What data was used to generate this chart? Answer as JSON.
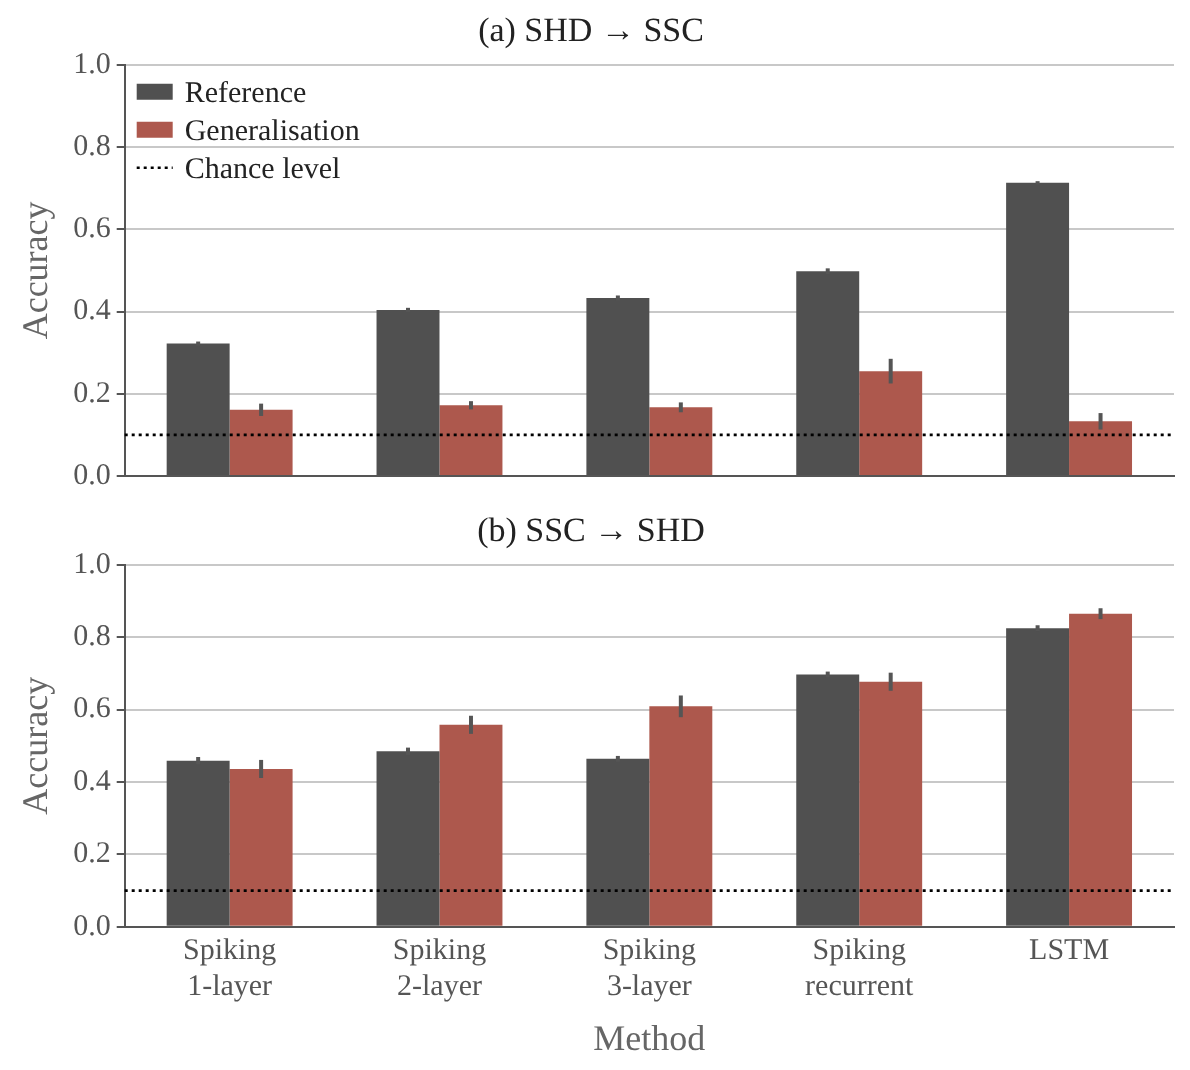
{
  "chart_data": [
    {
      "type": "bar",
      "title": "(a) SHD → SSC",
      "ylabel": "Accuracy",
      "categories": [
        null,
        null,
        null,
        null,
        null
      ],
      "series": [
        {
          "name": "Reference",
          "color": "#505050",
          "values": [
            0.322,
            0.404,
            0.433,
            0.498,
            0.713
          ],
          "errors": [
            0.005,
            0.005,
            0.006,
            0.007,
            0.004
          ]
        },
        {
          "name": "Generalisation",
          "color": "#ad584d",
          "values": [
            0.161,
            0.172,
            0.167,
            0.255,
            0.133
          ],
          "errors": [
            0.015,
            0.01,
            0.012,
            0.03,
            0.02
          ]
        }
      ],
      "ylim": [
        0,
        1
      ],
      "yticks": [
        {
          "value": 0,
          "label": "0.0"
        },
        {
          "value": 0.2,
          "label": "0.2"
        },
        {
          "value": 0.4,
          "label": "0.4"
        },
        {
          "value": 0.6,
          "label": "0.6"
        },
        {
          "value": 0.8,
          "label": "0.8"
        },
        {
          "value": 1,
          "label": "1.0"
        }
      ],
      "ref_lines": [
        {
          "axis": "y",
          "value": 0.1,
          "label": "Chance level",
          "color": "#000000",
          "line_style": "dotted"
        }
      ],
      "grid": "y",
      "legend": "top left",
      "tick_labels": "y"
    },
    {
      "type": "bar",
      "title": "(b) SSC → SHD",
      "xlabel": "Method",
      "ylabel": "Accuracy",
      "categories": [
        "Spiking 1-layer",
        "Spiking 2-layer",
        "Spiking 3-layer",
        "Spiking recurrent",
        "LSTM"
      ],
      "series": [
        {
          "color": "#505050",
          "values": [
            0.459,
            0.485,
            0.464,
            0.697,
            0.825
          ],
          "errors": [
            0.01,
            0.01,
            0.008,
            0.008,
            0.008
          ]
        },
        {
          "color": "#ad584d",
          "values": [
            0.436,
            0.558,
            0.609,
            0.677,
            0.865
          ],
          "errors": [
            0.025,
            0.025,
            0.03,
            0.025,
            0.015
          ]
        }
      ],
      "ylim": [
        0,
        1
      ],
      "yticks": [
        {
          "value": 0,
          "label": "0.0"
        },
        {
          "value": 0.2,
          "label": "0.2"
        },
        {
          "value": 0.4,
          "label": "0.4"
        },
        {
          "value": 0.6,
          "label": "0.6"
        },
        {
          "value": 0.8,
          "label": "0.8"
        },
        {
          "value": 1,
          "label": "1.0"
        }
      ],
      "ref_lines": [
        {
          "axis": "y",
          "value": 0.1,
          "color": "#000000",
          "line_style": "dotted"
        }
      ],
      "grid": "y"
    }
  ]
}
